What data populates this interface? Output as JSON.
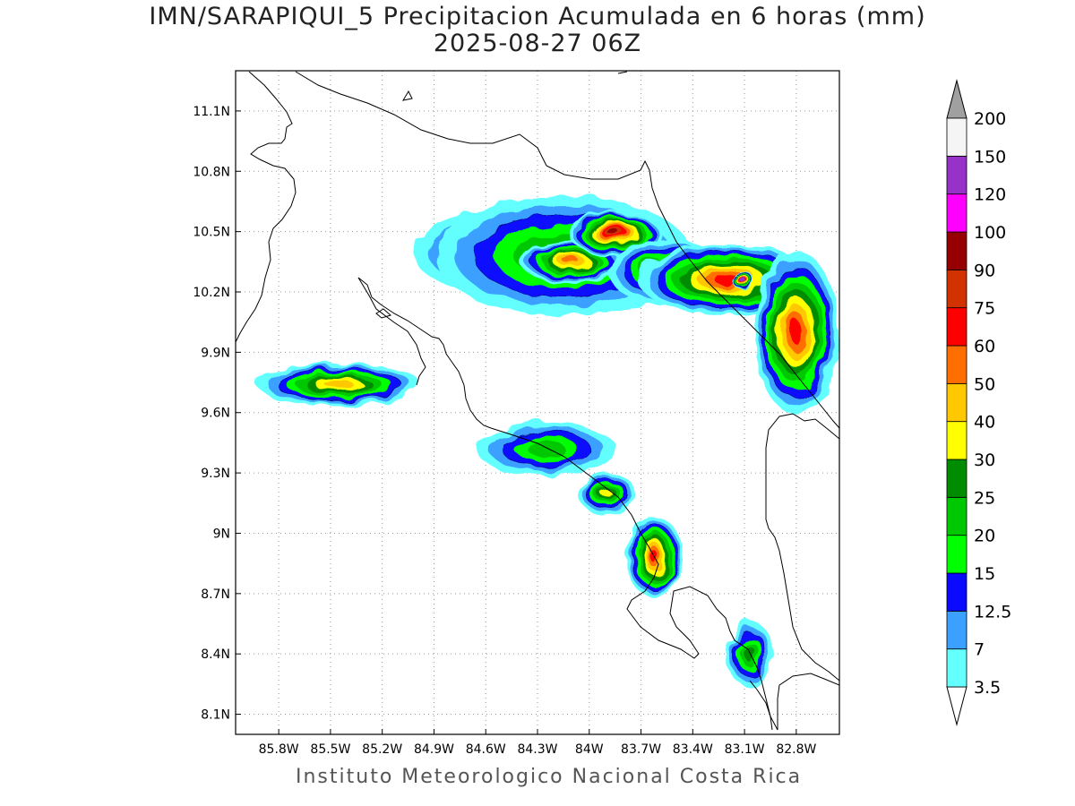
{
  "title": "IMN/SARAPIQUI_5 Precipitacion Acumulada en 6 horas (mm)",
  "subtitle": "2025-08-27 06Z",
  "footer": "Instituto Meteorologico Nacional Costa Rica",
  "map": {
    "lon_range": [
      -86.05,
      -82.55
    ],
    "lat_range": [
      8.0,
      11.3
    ],
    "lat_ticks": [
      {
        "v": 11.1,
        "label": "11.1N"
      },
      {
        "v": 10.8,
        "label": "10.8N"
      },
      {
        "v": 10.5,
        "label": "10.5N"
      },
      {
        "v": 10.2,
        "label": "10.2N"
      },
      {
        "v": 9.9,
        "label": "9.9N"
      },
      {
        "v": 9.6,
        "label": "9.6N"
      },
      {
        "v": 9.3,
        "label": "9.3N"
      },
      {
        "v": 9.0,
        "label": "9N"
      },
      {
        "v": 8.7,
        "label": "8.7N"
      },
      {
        "v": 8.4,
        "label": "8.4N"
      },
      {
        "v": 8.1,
        "label": "8.1N"
      }
    ],
    "lon_ticks": [
      {
        "v": -85.8,
        "label": "85.8W"
      },
      {
        "v": -85.5,
        "label": "85.5W"
      },
      {
        "v": -85.2,
        "label": "85.2W"
      },
      {
        "v": -84.9,
        "label": "84.9W"
      },
      {
        "v": -84.6,
        "label": "84.6W"
      },
      {
        "v": -84.3,
        "label": "84.3W"
      },
      {
        "v": -84.0,
        "label": "84W"
      },
      {
        "v": -83.7,
        "label": "83.7W"
      },
      {
        "v": -83.4,
        "label": "83.4W"
      },
      {
        "v": -83.1,
        "label": "83.1W"
      },
      {
        "v": -82.8,
        "label": "82.8W"
      }
    ],
    "grid": true
  },
  "colorbar": {
    "levels": [
      {
        "label": "3.5",
        "color": "#64ffff"
      },
      {
        "label": "7",
        "color": "#3ba0ff"
      },
      {
        "label": "12.5",
        "color": "#0a0aff"
      },
      {
        "label": "15",
        "color": "#00ff00"
      },
      {
        "label": "20",
        "color": "#00c800"
      },
      {
        "label": "25",
        "color": "#008c00"
      },
      {
        "label": "30",
        "color": "#ffff00"
      },
      {
        "label": "40",
        "color": "#ffc800"
      },
      {
        "label": "50",
        "color": "#ff6e00"
      },
      {
        "label": "60",
        "color": "#ff0000"
      },
      {
        "label": "75",
        "color": "#d23200"
      },
      {
        "label": "90",
        "color": "#960000"
      },
      {
        "label": "100",
        "color": "#ff00ff"
      },
      {
        "label": "120",
        "color": "#9632c8"
      },
      {
        "label": "150",
        "color": "#f5f5f5"
      },
      {
        "label": "200",
        "color": "#a0a0a0"
      }
    ]
  },
  "precip_cells": [
    {
      "lon": -84.55,
      "lat": 10.4,
      "rx": 0.35,
      "ry": 0.15,
      "level": 4
    },
    {
      "lon": -84.15,
      "lat": 10.38,
      "rx": 0.55,
      "ry": 0.22,
      "level": 5
    },
    {
      "lon": -84.1,
      "lat": 10.35,
      "rx": 0.22,
      "ry": 0.08,
      "level": 8
    },
    {
      "lon": -83.85,
      "lat": 10.49,
      "rx": 0.2,
      "ry": 0.08,
      "level": 11
    },
    {
      "lon": -83.55,
      "lat": 10.3,
      "rx": 0.25,
      "ry": 0.12,
      "level": 6
    },
    {
      "lon": -83.2,
      "lat": 10.26,
      "rx": 0.38,
      "ry": 0.13,
      "level": 9
    },
    {
      "lon": -83.1,
      "lat": 10.25,
      "rx": 0.05,
      "ry": 0.03,
      "level": 13
    },
    {
      "lon": -82.8,
      "lat": 10.0,
      "rx": 0.18,
      "ry": 0.3,
      "level": 9
    },
    {
      "lon": -85.45,
      "lat": 9.74,
      "rx": 0.35,
      "ry": 0.08,
      "level": 7
    },
    {
      "lon": -84.25,
      "lat": 9.42,
      "rx": 0.3,
      "ry": 0.1,
      "level": 4
    },
    {
      "lon": -83.9,
      "lat": 9.2,
      "rx": 0.12,
      "ry": 0.08,
      "level": 6
    },
    {
      "lon": -83.62,
      "lat": 8.88,
      "rx": 0.12,
      "ry": 0.15,
      "level": 9
    },
    {
      "lon": -83.07,
      "lat": 8.4,
      "rx": 0.1,
      "ry": 0.12,
      "level": 5
    }
  ]
}
